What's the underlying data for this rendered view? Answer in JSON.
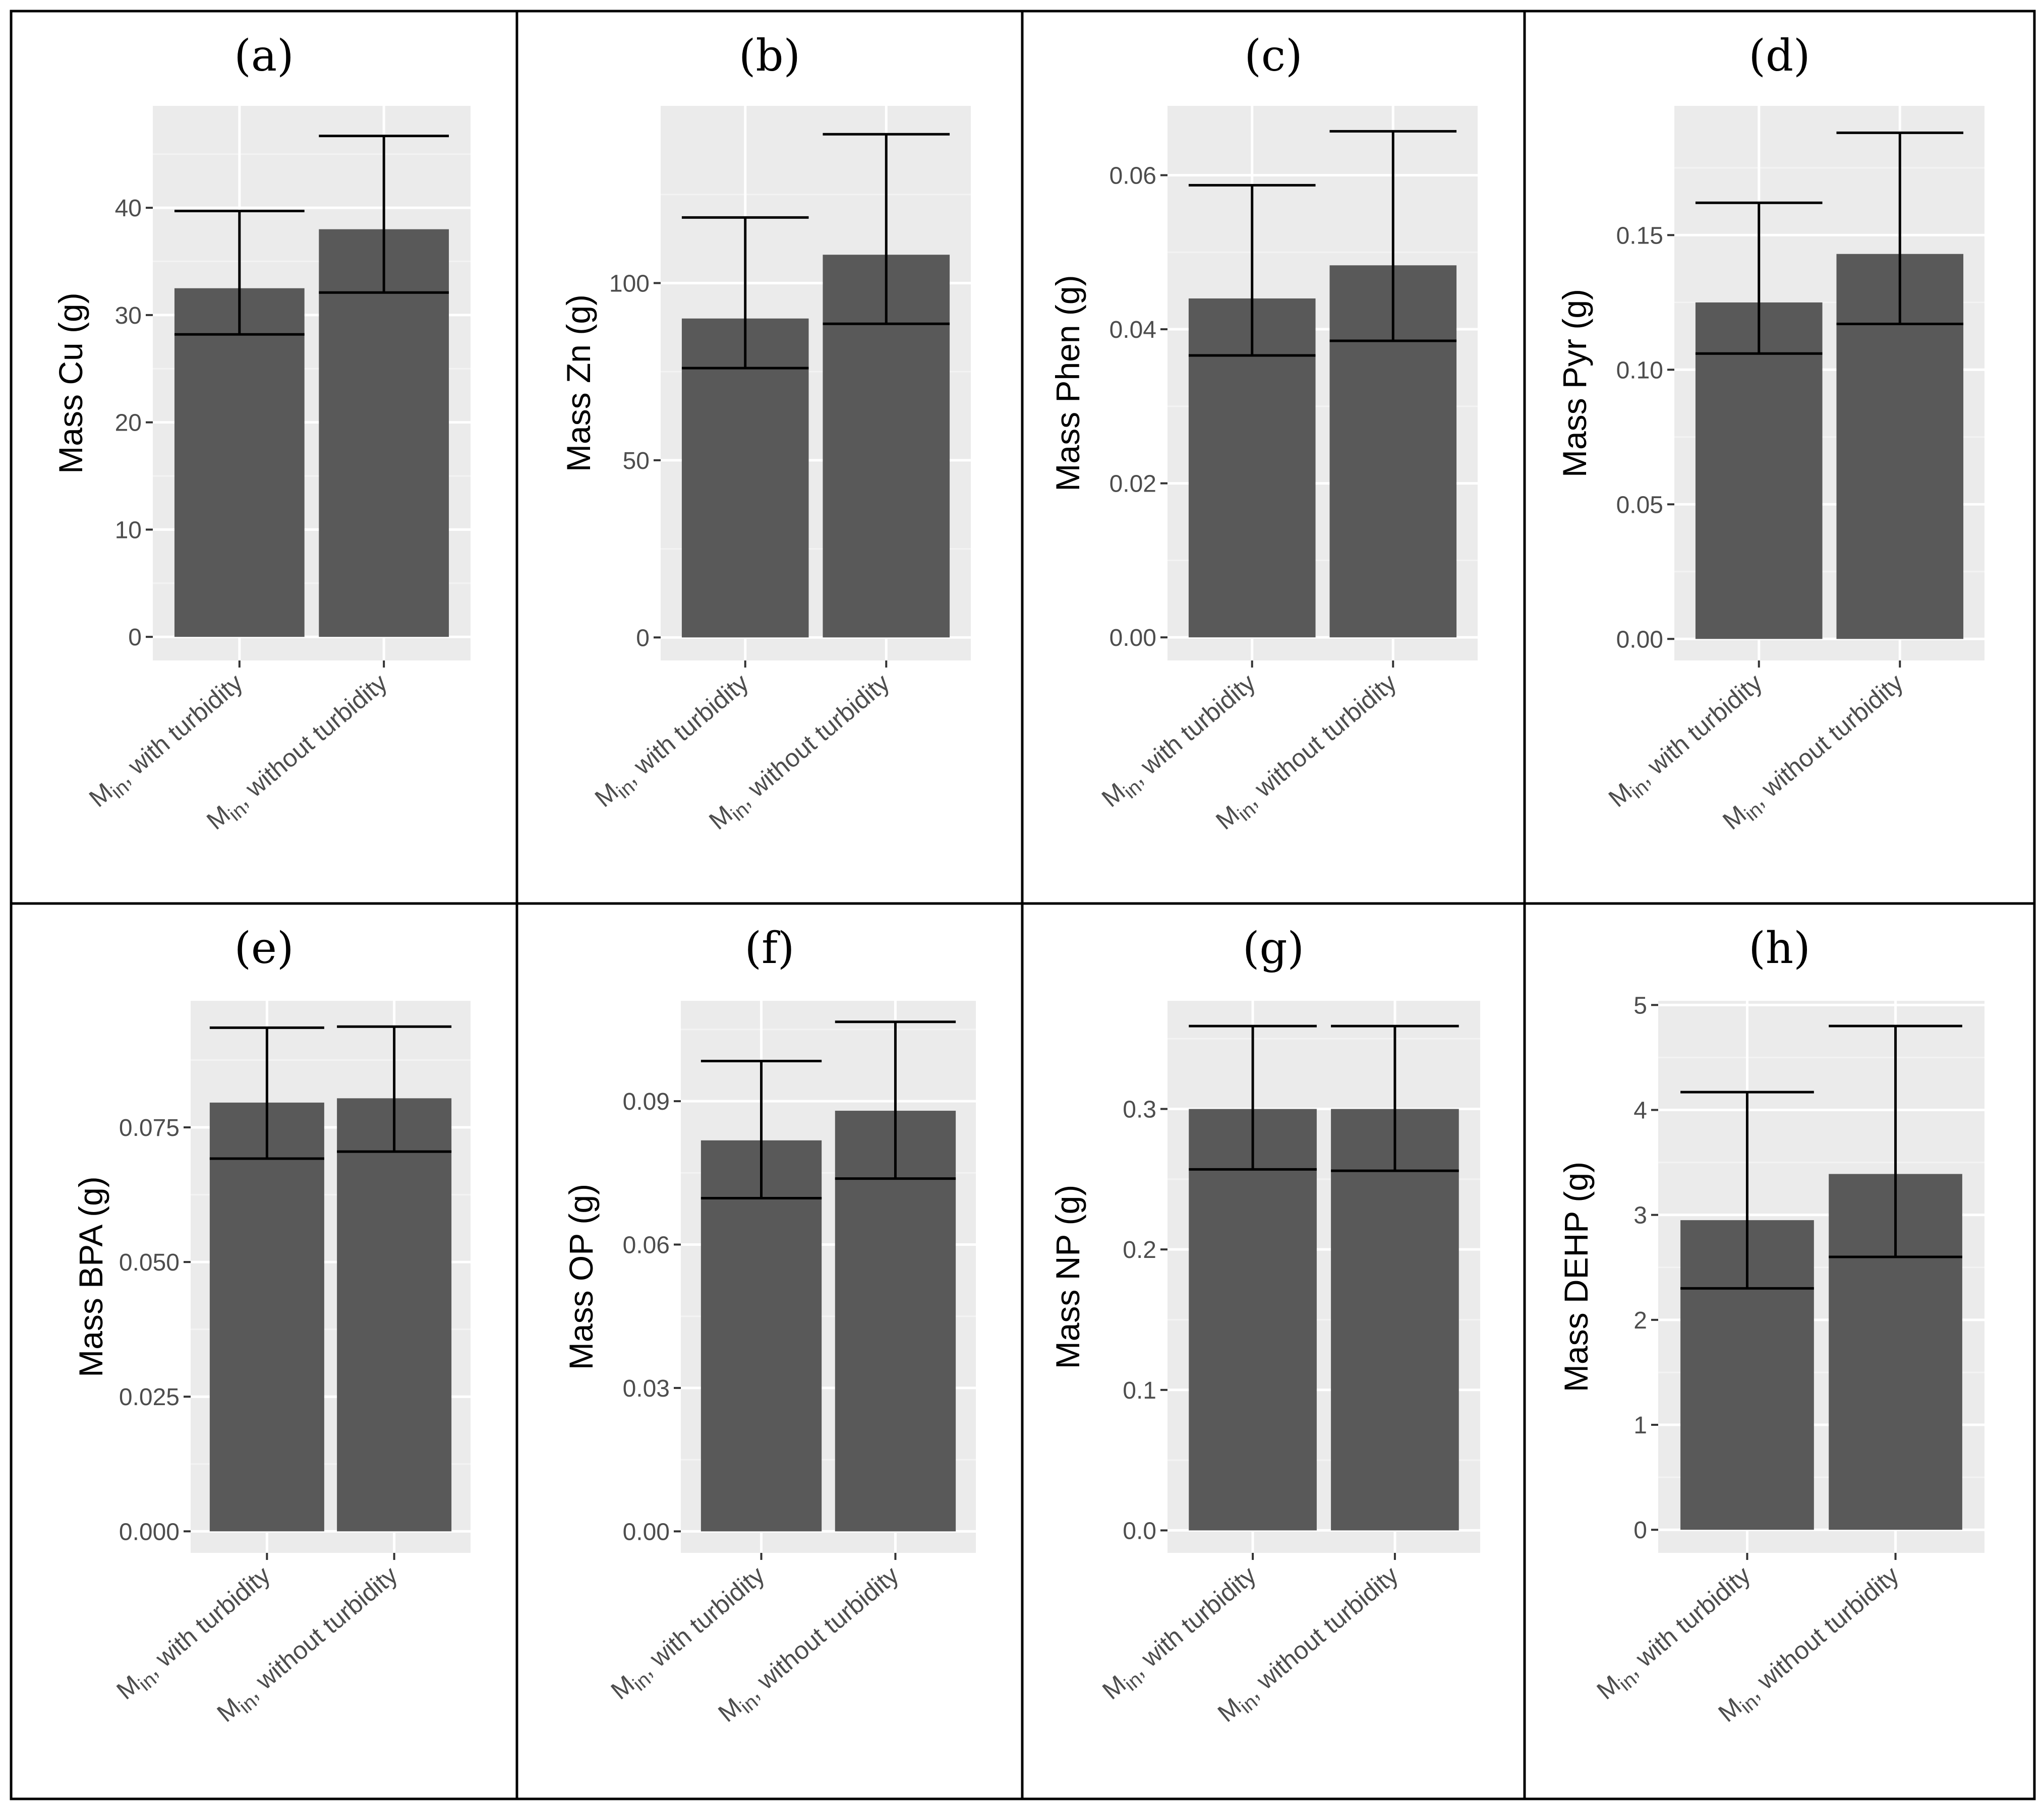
{
  "figure": {
    "categories": {
      "with": {
        "main": "M",
        "sub": "in",
        "rest": ", with turbidity"
      },
      "without": {
        "main": "M",
        "sub": "in",
        "rest": ", without turbidity"
      }
    }
  },
  "chart_data": [
    {
      "type": "bar",
      "panel": "(a)",
      "ylabel": "Mass Cu (g)",
      "categories": [
        "M_in, with turbidity",
        "M_in, without turbidity"
      ],
      "values": [
        32.5,
        38.0
      ],
      "error_low": [
        28.2,
        32.1
      ],
      "error_high": [
        39.7,
        46.7
      ],
      "ylim": [
        -2.2,
        49.5
      ],
      "yticks": [
        0,
        10,
        20,
        30,
        40
      ],
      "ytick_labels": [
        "0",
        "10",
        "20",
        "30",
        "40"
      ]
    },
    {
      "type": "bar",
      "panel": "(b)",
      "ylabel": "Mass Zn (g)",
      "categories": [
        "M_in, with turbidity",
        "M_in, without turbidity"
      ],
      "values": [
        90,
        108
      ],
      "error_low": [
        76,
        88.5
      ],
      "error_high": [
        118.5,
        142
      ],
      "ylim": [
        -6.5,
        150
      ],
      "yticks": [
        0,
        50,
        100
      ],
      "ytick_labels": [
        "0",
        "50",
        "100"
      ]
    },
    {
      "type": "bar",
      "panel": "(c)",
      "ylabel": "Mass Phen (g)",
      "categories": [
        "M_in, with turbidity",
        "M_in, without turbidity"
      ],
      "values": [
        0.044,
        0.0483
      ],
      "error_low": [
        0.0366,
        0.0385
      ],
      "error_high": [
        0.0587,
        0.0657
      ],
      "ylim": [
        -0.003,
        0.069
      ],
      "yticks": [
        0.0,
        0.02,
        0.04,
        0.06
      ],
      "ytick_labels": [
        "0.00",
        "0.02",
        "0.04",
        "0.06"
      ]
    },
    {
      "type": "bar",
      "panel": "(d)",
      "ylabel": "Mass Pyr (g)",
      "categories": [
        "M_in, with turbidity",
        "M_in, without turbidity"
      ],
      "values": [
        0.125,
        0.143
      ],
      "error_low": [
        0.106,
        0.117
      ],
      "error_high": [
        0.162,
        0.188
      ],
      "ylim": [
        -0.008,
        0.198
      ],
      "yticks": [
        0.0,
        0.05,
        0.1,
        0.15
      ],
      "ytick_labels": [
        "0.00",
        "0.05",
        "0.10",
        "0.15"
      ]
    },
    {
      "type": "bar",
      "panel": "(e)",
      "ylabel": "Mass BPA (g)",
      "categories": [
        "M_in, with turbidity",
        "M_in, without turbidity"
      ],
      "values": [
        0.0796,
        0.0804
      ],
      "error_low": [
        0.0692,
        0.0705
      ],
      "error_high": [
        0.0935,
        0.0937
      ],
      "ylim": [
        -0.004,
        0.0985
      ],
      "yticks": [
        0.0,
        0.025,
        0.05,
        0.075
      ],
      "ytick_labels": [
        "0.000",
        "0.025",
        "0.050",
        "0.075"
      ]
    },
    {
      "type": "bar",
      "panel": "(f)",
      "ylabel": "Mass OP (g)",
      "categories": [
        "M_in, with turbidity",
        "M_in, without turbidity"
      ],
      "values": [
        0.0818,
        0.088
      ],
      "error_low": [
        0.0697,
        0.0738
      ],
      "error_high": [
        0.0984,
        0.1066
      ],
      "ylim": [
        -0.0045,
        0.111
      ],
      "yticks": [
        0.0,
        0.03,
        0.06,
        0.09
      ],
      "ytick_labels": [
        "0.00",
        "0.03",
        "0.06",
        "0.09"
      ]
    },
    {
      "type": "bar",
      "panel": "(g)",
      "ylabel": "Mass NP (g)",
      "categories": [
        "M_in, with turbidity",
        "M_in, without turbidity"
      ],
      "values": [
        0.3,
        0.3
      ],
      "error_low": [
        0.257,
        0.256
      ],
      "error_high": [
        0.359,
        0.359
      ],
      "ylim": [
        -0.016,
        0.377
      ],
      "yticks": [
        0.0,
        0.1,
        0.2,
        0.3
      ],
      "ytick_labels": [
        "0.0",
        "0.1",
        "0.2",
        "0.3"
      ]
    },
    {
      "type": "bar",
      "panel": "(h)",
      "ylabel": "Mass DEHP (g)",
      "categories": [
        "M_in, with turbidity",
        "M_in, without turbidity"
      ],
      "values": [
        2.95,
        3.39
      ],
      "error_low": [
        2.3,
        2.6
      ],
      "error_high": [
        4.17,
        4.8
      ],
      "ylim": [
        -0.22,
        5.04
      ],
      "yticks": [
        0,
        1,
        2,
        3,
        4,
        5
      ],
      "ytick_labels": [
        "0",
        "1",
        "2",
        "3",
        "4",
        "5"
      ]
    }
  ],
  "colors": {
    "bar": "#595959",
    "plot_background": "#ebebeb",
    "grid_major": "#ffffff",
    "grid_minor": "#f3f3f3",
    "error_bar": "#000000",
    "tick": "#333333",
    "border": "#000000"
  }
}
